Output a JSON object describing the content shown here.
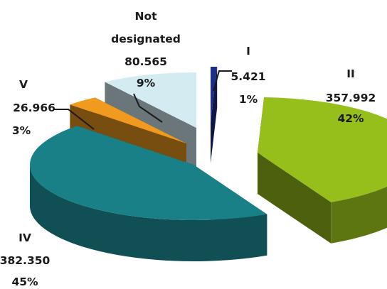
{
  "chart_data": {
    "type": "pie",
    "style": "3d-exploded",
    "legend": "none",
    "slices": [
      {
        "label": "I",
        "value": 5.421,
        "value_text": "5.421",
        "percent_text": "1%",
        "color": "#1f2d8a"
      },
      {
        "label": "II",
        "value": 357.992,
        "value_text": "357.992",
        "percent_text": "42%",
        "color": "#97bf1c"
      },
      {
        "label": "IV",
        "value": 382.35,
        "value_text": "382.350",
        "percent_text": "45%",
        "color": "#1a8088"
      },
      {
        "label": "V",
        "value": 26.966,
        "value_text": "26.966",
        "percent_text": "3%",
        "color": "#f09a1f"
      },
      {
        "label": "Not designated",
        "value": 80.565,
        "value_text": "80.565",
        "percent_text": "9%",
        "color": "#d4ebf2"
      }
    ]
  }
}
